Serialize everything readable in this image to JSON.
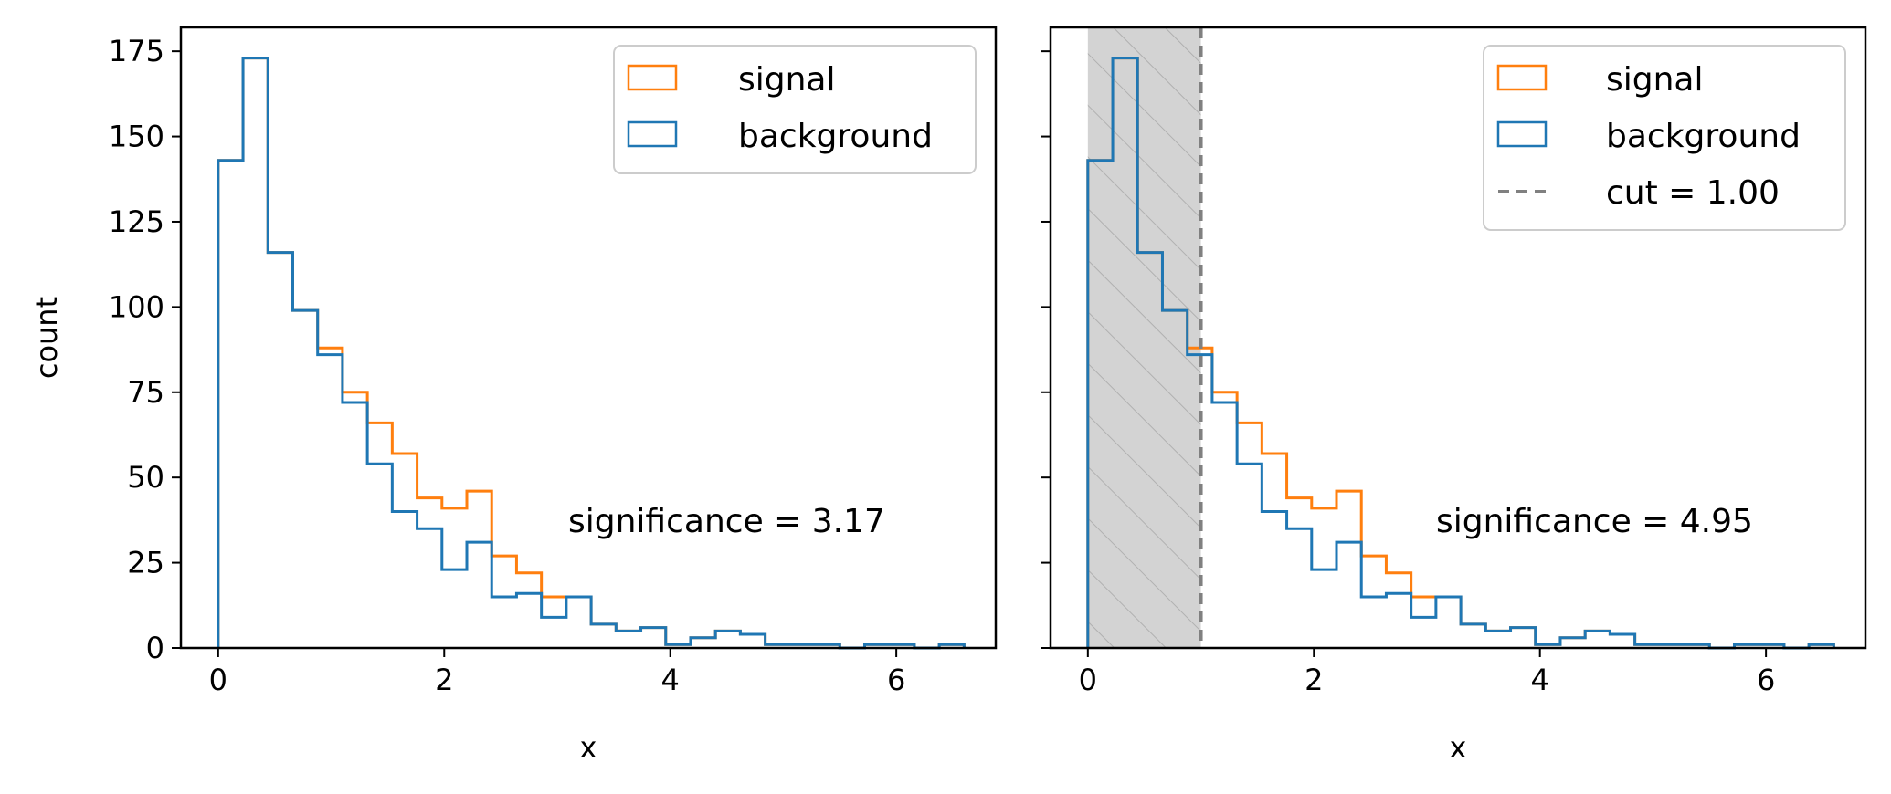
{
  "colors": {
    "signal": "#ff7f0e",
    "background": "#1f77b4",
    "cut_line": "#808080",
    "shade": "#d3d3d3",
    "hatch": "#b0b0b0"
  },
  "chart_data": [
    {
      "type": "histogram-step",
      "panel": "left",
      "xlabel": "x",
      "ylabel": "count",
      "xlim": [
        -0.33,
        6.88
      ],
      "ylim": [
        0,
        182
      ],
      "xticks": [
        0,
        2,
        4,
        6
      ],
      "yticks": [
        0,
        25,
        50,
        75,
        100,
        125,
        150,
        175
      ],
      "bin_edges": [
        0,
        0.22,
        0.44,
        0.66,
        0.88,
        1.1,
        1.32,
        1.54,
        1.76,
        1.98,
        2.2,
        2.42,
        2.64,
        2.86,
        3.08,
        3.3,
        3.52,
        3.74,
        3.96,
        4.18,
        4.4,
        4.62,
        4.84,
        5.06,
        5.28,
        5.5,
        5.72,
        5.94,
        6.16,
        6.38,
        6.6
      ],
      "series": [
        {
          "name": "signal",
          "values": [
            143,
            173,
            116,
            99,
            88,
            75,
            66,
            57,
            44,
            41,
            46,
            27,
            22,
            15,
            15,
            7,
            5,
            6,
            1,
            3,
            5,
            4,
            1,
            1,
            1,
            0,
            1,
            1,
            0,
            1
          ]
        },
        {
          "name": "background",
          "values": [
            143,
            173,
            116,
            99,
            86,
            72,
            54,
            40,
            35,
            23,
            31,
            15,
            16,
            9,
            15,
            7,
            5,
            6,
            1,
            3,
            5,
            4,
            1,
            1,
            1,
            0,
            1,
            1,
            0,
            1
          ]
        }
      ],
      "legend": {
        "position": "top-right",
        "entries": [
          "signal",
          "background"
        ]
      },
      "annotation": "significance = 3.17"
    },
    {
      "type": "histogram-step",
      "panel": "right",
      "xlabel": "x",
      "ylabel": "",
      "xlim": [
        -0.33,
        6.88
      ],
      "ylim": [
        0,
        182
      ],
      "xticks": [
        0,
        2,
        4,
        6
      ],
      "yticks": [
        0,
        25,
        50,
        75,
        100,
        125,
        150,
        175
      ],
      "bin_edges": [
        0,
        0.22,
        0.44,
        0.66,
        0.88,
        1.1,
        1.32,
        1.54,
        1.76,
        1.98,
        2.2,
        2.42,
        2.64,
        2.86,
        3.08,
        3.3,
        3.52,
        3.74,
        3.96,
        4.18,
        4.4,
        4.62,
        4.84,
        5.06,
        5.28,
        5.5,
        5.72,
        5.94,
        6.16,
        6.38,
        6.6
      ],
      "series": [
        {
          "name": "signal",
          "values": [
            143,
            173,
            116,
            99,
            88,
            75,
            66,
            57,
            44,
            41,
            46,
            27,
            22,
            15,
            15,
            7,
            5,
            6,
            1,
            3,
            5,
            4,
            1,
            1,
            1,
            0,
            1,
            1,
            0,
            1
          ]
        },
        {
          "name": "background",
          "values": [
            143,
            173,
            116,
            99,
            86,
            72,
            54,
            40,
            35,
            23,
            31,
            15,
            16,
            9,
            15,
            7,
            5,
            6,
            1,
            3,
            5,
            4,
            1,
            1,
            1,
            0,
            1,
            1,
            0,
            1
          ]
        }
      ],
      "cut": 1.0,
      "shaded_region": [
        0,
        1.0
      ],
      "legend": {
        "position": "top-right",
        "entries": [
          "signal",
          "background",
          "cut = 1.00"
        ]
      },
      "annotation": "significance = 4.95"
    }
  ]
}
